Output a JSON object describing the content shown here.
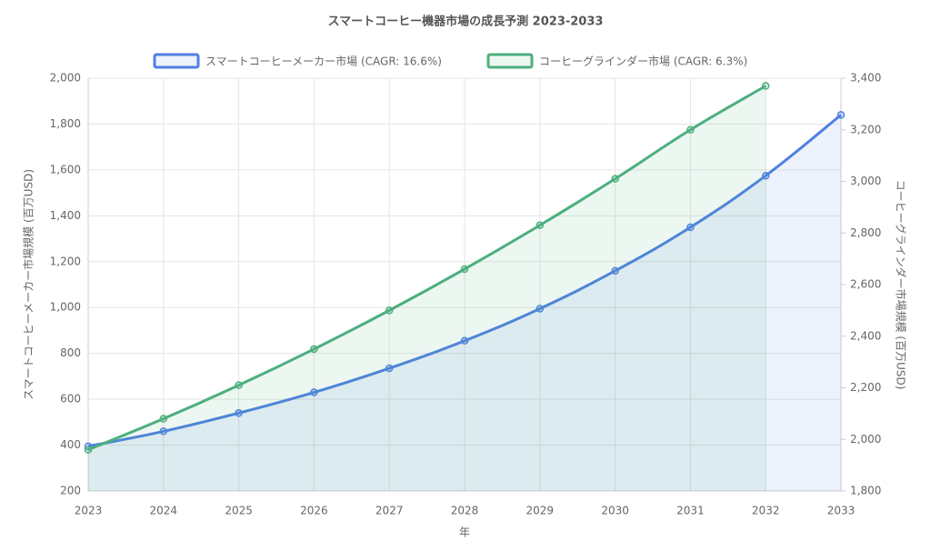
{
  "chart_data": {
    "type": "line",
    "title": "スマートコーヒー機器市場の成長予測 2023-2033",
    "x_label": "年",
    "y_label": "スマートコーヒーメーカー市場規模 (百万USD)",
    "y2_label": "コーヒーグラインダー市場規模 (百万USD)",
    "categories": [
      "2023",
      "2024",
      "2025",
      "2026",
      "2027",
      "2028",
      "2029",
      "2030",
      "2031",
      "2032",
      "2033"
    ],
    "series": [
      {
        "name": "スマートコーヒーメーカー市場 (CAGR: 16.6%)",
        "color": "#4f80e1",
        "fill": true,
        "values": [
          395,
          460,
          540,
          630,
          735,
          855,
          995,
          1160,
          1350,
          1575,
          1840
        ]
      },
      {
        "name": "コーヒーグラインダー市場 (CAGR: 6.3%)",
        "color": "#4caf7d",
        "fill": true,
        "axis": "y2",
        "values": [
          1960,
          2080,
          2210,
          2350,
          2500,
          2660,
          2830,
          3010,
          3200,
          3370,
          null
        ]
      }
    ],
    "ylim": [
      200,
      2000
    ],
    "yticks": [
      200,
      400,
      600,
      800,
      {
        "value": 1000,
        "label": "1,000"
      },
      {
        "value": 1200,
        "label": "1,200"
      },
      {
        "value": 1400,
        "label": "1,400"
      },
      {
        "value": 1600,
        "label": "1,600"
      },
      {
        "value": 1800,
        "label": "1,800"
      },
      {
        "value": 2000,
        "label": "2,000"
      }
    ],
    "y2lim": [
      1800,
      3400
    ],
    "y2ticks": [
      {
        "value": 1800,
        "label": "1,800"
      },
      {
        "value": 2000,
        "label": "2,000"
      },
      {
        "value": 2200,
        "label": "2,200"
      },
      {
        "value": 2400,
        "label": "2,400"
      },
      {
        "value": 2600,
        "label": "2,600"
      },
      {
        "value": 2800,
        "label": "2,800"
      },
      {
        "value": 3000,
        "label": "3,000"
      },
      {
        "value": 3200,
        "label": "3,200"
      },
      {
        "value": 3400,
        "label": "3,400"
      }
    ],
    "grid": true,
    "legend": "top"
  }
}
